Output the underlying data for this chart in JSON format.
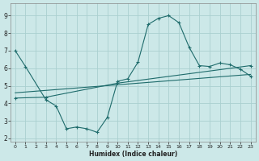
{
  "xlabel": "Humidex (Indice chaleur)",
  "bg_color": "#cce8e8",
  "grid_color": "#aad0d0",
  "line_color": "#1e6b6b",
  "xlim": [
    -0.5,
    23.5
  ],
  "ylim": [
    1.8,
    9.7
  ],
  "xticks": [
    0,
    1,
    2,
    3,
    4,
    5,
    6,
    7,
    8,
    9,
    10,
    11,
    12,
    13,
    14,
    15,
    16,
    17,
    18,
    19,
    20,
    21,
    22,
    23
  ],
  "yticks": [
    2,
    3,
    4,
    5,
    6,
    7,
    8,
    9
  ],
  "curve1_x": [
    0,
    1,
    3,
    4,
    5,
    6,
    7,
    8,
    9,
    10,
    11,
    12,
    13,
    14,
    15,
    16,
    17,
    18,
    19,
    20,
    21,
    22,
    23
  ],
  "curve1_y": [
    7.0,
    6.1,
    4.2,
    3.85,
    2.55,
    2.65,
    2.55,
    2.35,
    3.2,
    5.25,
    5.4,
    6.35,
    8.5,
    8.85,
    9.0,
    8.6,
    7.2,
    6.15,
    6.1,
    6.3,
    6.2,
    5.95,
    5.55
  ],
  "curve2_x": [
    0,
    3,
    10,
    23
  ],
  "curve2_y": [
    4.3,
    4.35,
    5.15,
    6.15
  ],
  "curve3_x": [
    0,
    23
  ],
  "curve3_y": [
    4.6,
    5.65
  ]
}
